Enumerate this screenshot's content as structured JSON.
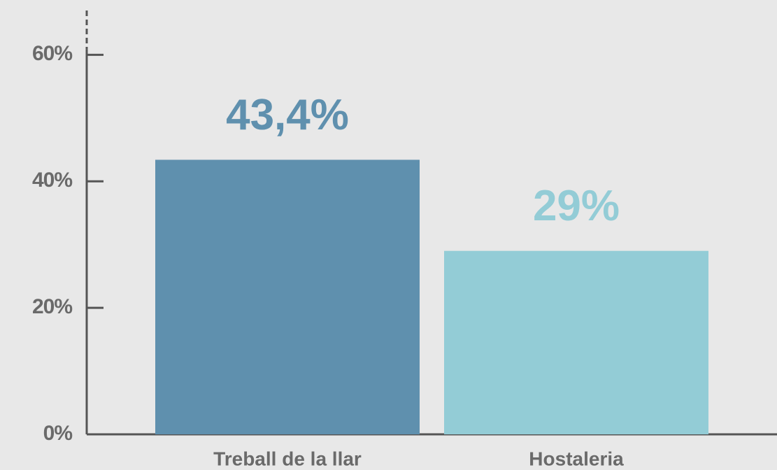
{
  "chart_data": {
    "type": "bar",
    "categories": [
      "Treball de la llar",
      "Hostaleria"
    ],
    "values": [
      43.4,
      29
    ],
    "value_labels": [
      "43,4%",
      "29%"
    ],
    "colors": [
      "#5f90ae",
      "#93ccd6"
    ],
    "ylim": [
      0,
      67
    ],
    "yticks": [
      {
        "value": 0,
        "label": "0%"
      },
      {
        "value": 20,
        "label": "20%"
      },
      {
        "value": 40,
        "label": "40%"
      },
      {
        "value": 60,
        "label": "60%"
      }
    ],
    "grid": false
  }
}
